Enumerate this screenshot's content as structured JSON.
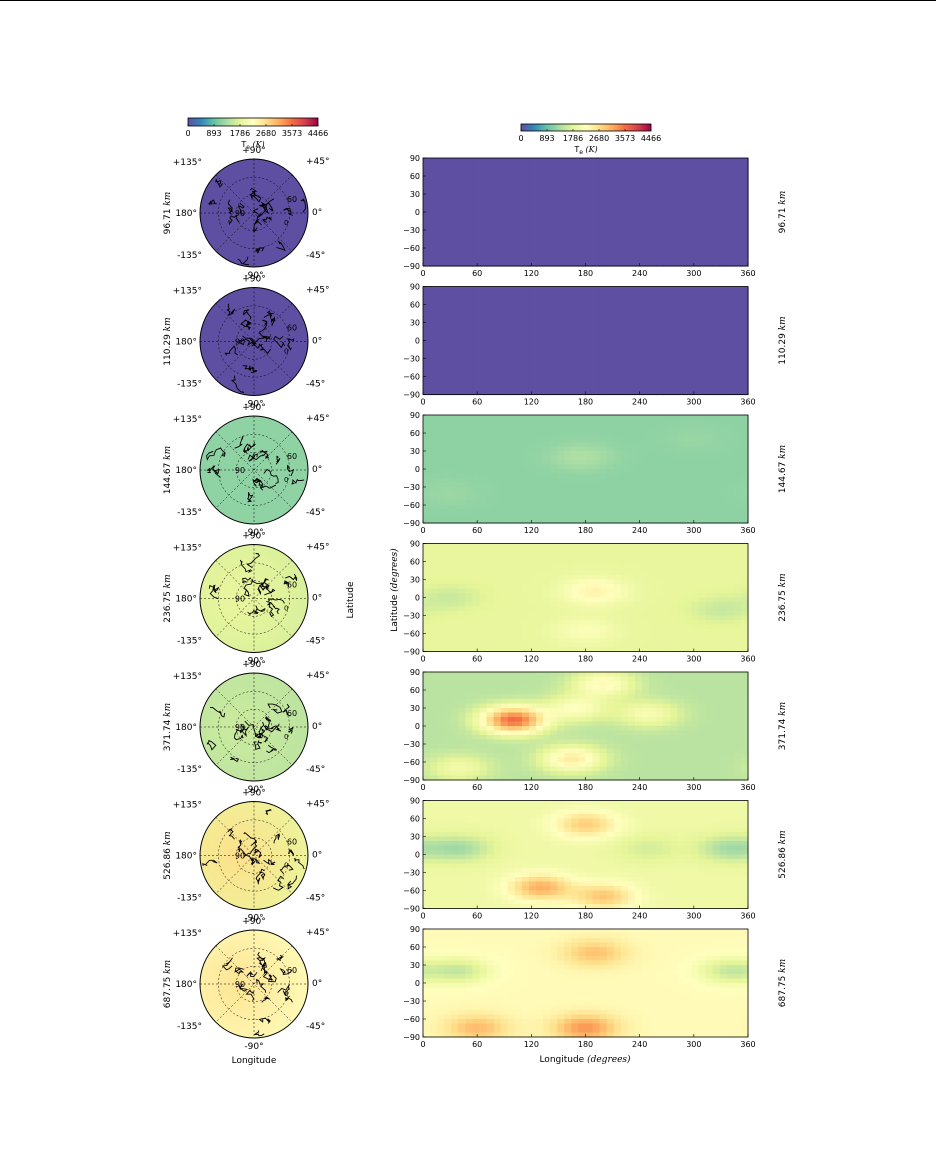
{
  "chart_data": {
    "type": "heatmap",
    "quantity_label": "T",
    "quantity_subscript": "e",
    "unit": "(K)",
    "colorbar_ticks": [
      "0",
      "893",
      "1786",
      "2680",
      "3573",
      "4466"
    ],
    "colorbar_range": [
      0,
      4466
    ],
    "colormap": [
      "#5e4fa2",
      "#3288bd",
      "#66c2a5",
      "#abdda4",
      "#e6f598",
      "#ffffbf",
      "#fee08b",
      "#fdae61",
      "#f46d43",
      "#d53e4f",
      "#9e0142"
    ],
    "map_panels": {
      "lon_labels": [
        "+90°",
        "+45°",
        "0°",
        "-45°",
        "-90°",
        "-135°",
        "180°",
        "+135°"
      ],
      "lat_ring_labels": [
        "90",
        "60",
        "0"
      ],
      "xlabel": "Longitude",
      "ylabel": "Latitude"
    },
    "rect_panels": {
      "x_ticks": [
        "0",
        "60",
        "120",
        "180",
        "240",
        "300",
        "360"
      ],
      "y_ticks": [
        "90",
        "60",
        "30",
        "0",
        "−30",
        "−60",
        "−90"
      ],
      "xlim": [
        0,
        360
      ],
      "ylim": [
        -90,
        90
      ],
      "xlabel_text": "Longitude",
      "xlabel_unit": "(degrees)",
      "ylabel_text": "Latitude",
      "ylabel_unit": "(degrees)"
    },
    "altitudes": [
      {
        "label": "96.71",
        "base": 0,
        "features": []
      },
      {
        "label": "110.29",
        "base": 0,
        "features": []
      },
      {
        "label": "144.67",
        "base": 1150,
        "features": [
          {
            "lon": 175,
            "lat": 20,
            "amp": 230
          },
          {
            "lon": 30,
            "lat": -40,
            "amp": 90
          },
          {
            "lon": 300,
            "lat": 50,
            "amp": 70
          }
        ]
      },
      {
        "label": "236.75",
        "base": 1850,
        "features": [
          {
            "lon": 190,
            "lat": 10,
            "amp": 550
          },
          {
            "lon": 30,
            "lat": 0,
            "amp": -280
          },
          {
            "lon": 330,
            "lat": -20,
            "amp": -300
          },
          {
            "lon": 180,
            "lat": -55,
            "amp": 300
          }
        ]
      },
      {
        "label": "371.74",
        "base": 1450,
        "features": [
          {
            "lon": 100,
            "lat": 10,
            "amp": 2150
          },
          {
            "lon": 165,
            "lat": -55,
            "amp": 1050
          },
          {
            "lon": 200,
            "lat": 70,
            "amp": 850
          },
          {
            "lon": 170,
            "lat": 30,
            "amp": 750
          },
          {
            "lon": 250,
            "lat": 20,
            "amp": 650
          },
          {
            "lon": 40,
            "lat": -70,
            "amp": 550
          }
        ]
      },
      {
        "label": "526.86",
        "base": 1950,
        "features": [
          {
            "lon": 180,
            "lat": 50,
            "amp": 900
          },
          {
            "lon": 130,
            "lat": -55,
            "amp": 1150
          },
          {
            "lon": 200,
            "lat": -70,
            "amp": 950
          },
          {
            "lon": 40,
            "lat": 10,
            "amp": -650
          },
          {
            "lon": 340,
            "lat": 10,
            "amp": -650
          },
          {
            "lon": 250,
            "lat": 10,
            "amp": -300
          }
        ]
      },
      {
        "label": "687.75",
        "base": 2300,
        "features": [
          {
            "lon": 190,
            "lat": 50,
            "amp": 650
          },
          {
            "lon": 180,
            "lat": -75,
            "amp": 1000
          },
          {
            "lon": 60,
            "lat": -75,
            "amp": 700
          },
          {
            "lon": 40,
            "lat": 20,
            "amp": -750
          },
          {
            "lon": 340,
            "lat": 20,
            "amp": -750
          }
        ]
      }
    ]
  }
}
